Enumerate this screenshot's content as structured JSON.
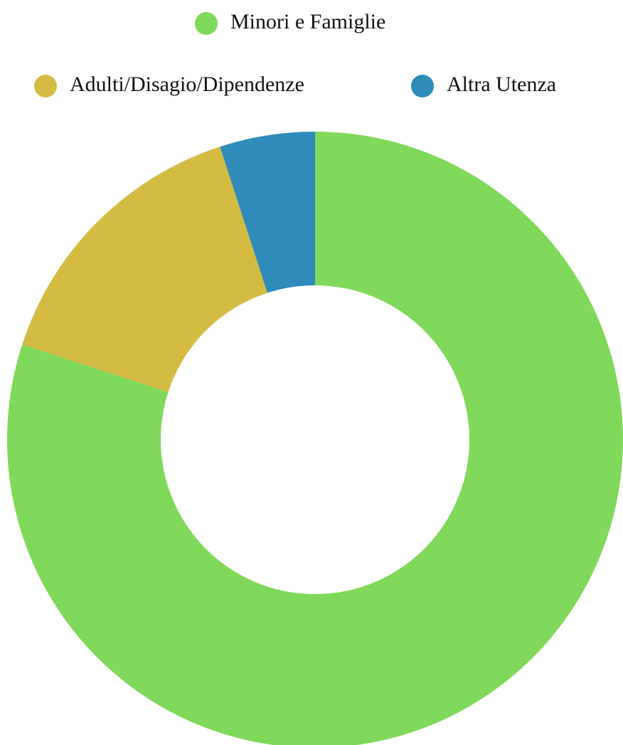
{
  "chart_data": {
    "type": "doughnut",
    "categories": [
      "Minori e Famiglie",
      "Adulti/Disagio/Dipendenze",
      "Altra Utenza"
    ],
    "values": [
      80,
      15,
      5
    ],
    "colors": [
      "#80d95a",
      "#d4bc43",
      "#2e8bba"
    ]
  }
}
